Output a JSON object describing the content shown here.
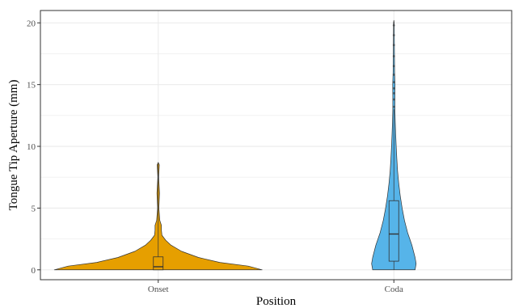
{
  "chart_data": {
    "type": "violin",
    "title": "",
    "xlabel": "Position",
    "ylabel": "Tongue Tip Aperture (mm)",
    "categories": [
      "Onset",
      "Coda"
    ],
    "ylim": [
      -0.8,
      21
    ],
    "yticks": [
      0,
      5,
      10,
      15,
      20
    ],
    "grid": true,
    "legend": "none",
    "colors": {
      "Onset": "#E69F00",
      "Coda": "#56B4E9",
      "outline": "#333333",
      "grid": "#ebebeb",
      "panel_border": "#333333"
    },
    "series": [
      {
        "category": "Onset",
        "density": [
          {
            "y": 0.0,
            "half_width": 0.98
          },
          {
            "y": 0.3,
            "half_width": 0.85
          },
          {
            "y": 0.6,
            "half_width": 0.58
          },
          {
            "y": 1.0,
            "half_width": 0.38
          },
          {
            "y": 1.5,
            "half_width": 0.22
          },
          {
            "y": 2.0,
            "half_width": 0.12
          },
          {
            "y": 2.4,
            "half_width": 0.07
          },
          {
            "y": 2.8,
            "half_width": 0.035
          },
          {
            "y": 3.2,
            "half_width": 0.03
          },
          {
            "y": 3.6,
            "half_width": 0.03
          },
          {
            "y": 4.0,
            "half_width": 0.015
          },
          {
            "y": 5.0,
            "half_width": 0.006
          },
          {
            "y": 6.2,
            "half_width": 0.012
          },
          {
            "y": 7.5,
            "half_width": 0.004
          },
          {
            "y": 8.5,
            "half_width": 0.01
          },
          {
            "y": 8.7,
            "half_width": 0.0
          }
        ],
        "box": {
          "min": 0.0,
          "q1": 0.0,
          "median": 0.25,
          "q3": 1.05,
          "max": 8.6
        }
      },
      {
        "category": "Coda",
        "density": [
          {
            "y": 0.0,
            "half_width": 0.2
          },
          {
            "y": 0.5,
            "half_width": 0.21
          },
          {
            "y": 1.0,
            "half_width": 0.2
          },
          {
            "y": 2.0,
            "half_width": 0.17
          },
          {
            "y": 3.0,
            "half_width": 0.13
          },
          {
            "y": 4.0,
            "half_width": 0.1
          },
          {
            "y": 5.0,
            "half_width": 0.078
          },
          {
            "y": 6.0,
            "half_width": 0.06
          },
          {
            "y": 7.0,
            "half_width": 0.046
          },
          {
            "y": 8.0,
            "half_width": 0.035
          },
          {
            "y": 9.0,
            "half_width": 0.028
          },
          {
            "y": 10.0,
            "half_width": 0.022
          },
          {
            "y": 11.0,
            "half_width": 0.017
          },
          {
            "y": 12.0,
            "half_width": 0.013
          },
          {
            "y": 13.0,
            "half_width": 0.01
          },
          {
            "y": 14.0,
            "half_width": 0.01
          },
          {
            "y": 15.0,
            "half_width": 0.011
          },
          {
            "y": 16.0,
            "half_width": 0.007
          },
          {
            "y": 17.0,
            "half_width": 0.006
          },
          {
            "y": 18.0,
            "half_width": 0.005
          },
          {
            "y": 19.0,
            "half_width": 0.004
          },
          {
            "y": 20.0,
            "half_width": 0.003
          },
          {
            "y": 20.2,
            "half_width": 0.0
          }
        ],
        "box": {
          "min": 0.0,
          "q1": 0.7,
          "median": 2.9,
          "q3": 5.6,
          "max": 13.0
        },
        "outliers": [
          13.2,
          13.8,
          14.3,
          14.7,
          15.2,
          15.8,
          16.5,
          17.3,
          18.2,
          19.0,
          19.8
        ]
      }
    ]
  }
}
